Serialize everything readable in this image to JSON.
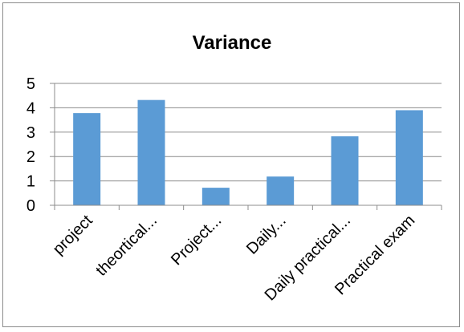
{
  "chart_data": {
    "type": "bar",
    "title": "Variance",
    "categories": [
      "project",
      "theortical...",
      "Project...",
      "Daily...",
      "Daily practical...",
      "Practical exam"
    ],
    "values": [
      3.78,
      4.32,
      0.72,
      1.18,
      2.83,
      3.9
    ],
    "ylim": [
      0,
      5
    ],
    "yticks": [
      0,
      1,
      2,
      3,
      4,
      5
    ],
    "gridlines": true,
    "legend": "none",
    "bar_color": "#5b9bd5"
  }
}
